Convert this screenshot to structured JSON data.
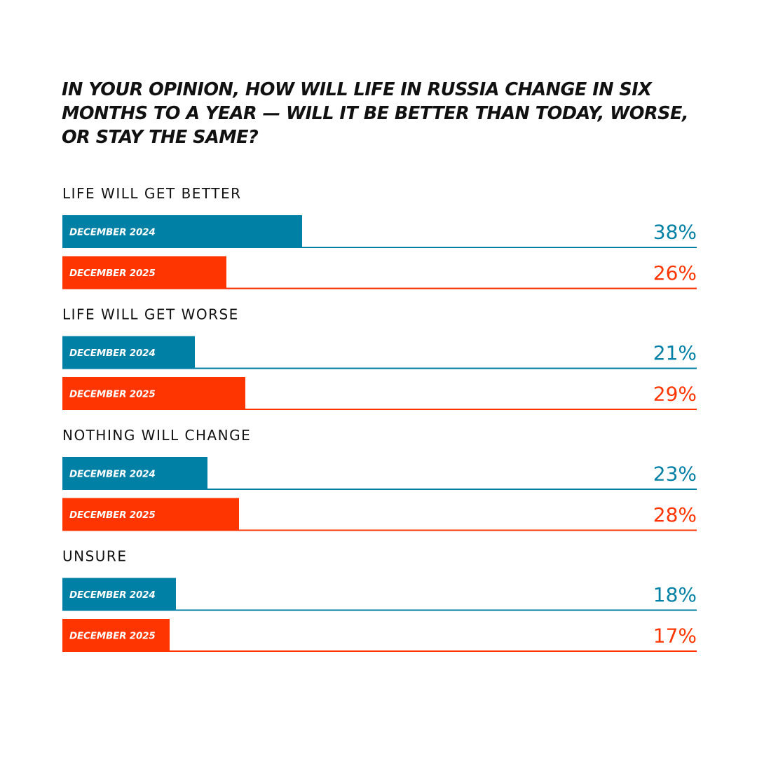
{
  "title": "In your opinion, how will life in Russia change in six months to a year — will it be better than today, worse, or stay the same?",
  "colors": {
    "dec2024": "#0080A5",
    "dec2025": "#FF3500",
    "text": "#111111"
  },
  "chart_data": {
    "type": "bar",
    "orientation": "horizontal",
    "title": "In your opinion, how will life in Russia change in six months to a year — will it be better than today, worse, or stay the same?",
    "categories": [
      "Life will get better",
      "Life will get worse",
      "Nothing will change",
      "Unsure"
    ],
    "series": [
      {
        "name": "December 2024",
        "label": "DECEMBER 2024",
        "color": "#0080A5",
        "values": [
          38,
          21,
          23,
          18
        ],
        "labels": [
          "38%",
          "21%",
          "23%",
          "18%"
        ]
      },
      {
        "name": "December 2025",
        "label": "DECEMBER  2025",
        "color": "#FF3500",
        "values": [
          26,
          29,
          28,
          17
        ],
        "labels": [
          "26%",
          "29%",
          "28%",
          "17%"
        ]
      }
    ],
    "unit": "%",
    "xlim": [
      0,
      100
    ],
    "grid": false,
    "legend": "none"
  }
}
